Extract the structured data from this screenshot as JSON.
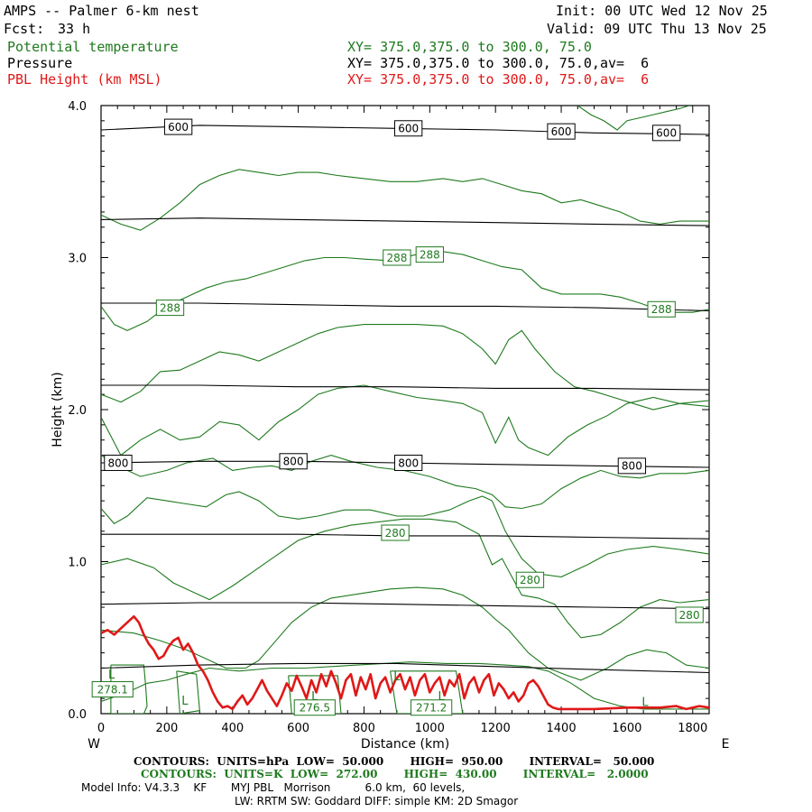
{
  "header": {
    "title": "AMPS -- Palmer 6-km nest",
    "fcst_label": "Fcst:",
    "fcst_value": "33 h",
    "init": "Init: 00 UTC Wed 12 Nov 25",
    "valid": "Valid: 09 UTC Thu 13 Nov 25",
    "legend": [
      {
        "name": "Potential temperature",
        "xy": "XY= 375.0,375.0 to 300.0, 75.0",
        "color": "#1e7a1e"
      },
      {
        "name": "Pressure",
        "xy": "XY= 375.0,375.0 to 300.0, 75.0,av=  6",
        "color": "#000000"
      },
      {
        "name": "PBL Height (km MSL)",
        "xy": "XY= 375.0,375.0 to 300.0, 75.0,av=  6",
        "color": "#e01818"
      }
    ]
  },
  "footer": {
    "pressure_contours": "CONTOURS:  UNITS=hPa  LOW=  50.000       HIGH=  950.00       INTERVAL=   50.000",
    "theta_contours": "CONTOURS:  UNITS=K  LOW=  272.00       HIGH=  430.00       INTERVAL=   2.0000",
    "model_info": "Model Info: V4.3.3    KF       MYJ PBL   Morrison          6.0 km,  60 levels,",
    "model_info_2": "LW: RRTM SW: Goddard DIFF: simple KM: 2D Smagor"
  },
  "chart_data": {
    "type": "line",
    "title": "AMPS -- Palmer 6-km nest",
    "xlabel": "Distance (km)",
    "ylabel": "Height (km)",
    "xlim": [
      0,
      1850
    ],
    "ylim": [
      0,
      4
    ],
    "x_ticks": [
      0,
      200,
      400,
      600,
      800,
      1000,
      1200,
      1400,
      1600,
      1800
    ],
    "x_tick_labels": [
      "0",
      "200",
      "400",
      "600",
      "800",
      "1000",
      "1200",
      "1400",
      "1600",
      "1800"
    ],
    "y_ticks": [
      0,
      1,
      2,
      3,
      4
    ],
    "y_tick_labels": [
      "0.0",
      "1.0",
      "2.0",
      "3.0",
      "4.0"
    ],
    "left_end_label": "W",
    "right_end_label": "E",
    "pressure_lines": [
      {
        "name": "600 hPa",
        "x": [
          0,
          300,
          600,
          900,
          1200,
          1500,
          1850
        ],
        "y": [
          3.84,
          3.87,
          3.86,
          3.85,
          3.84,
          3.82,
          3.81
        ]
      },
      {
        "name": "650 hPa",
        "x": [
          0,
          300,
          600,
          900,
          1200,
          1500,
          1850
        ],
        "y": [
          3.25,
          3.26,
          3.25,
          3.24,
          3.23,
          3.22,
          3.21
        ]
      },
      {
        "name": "700 hPa",
        "x": [
          0,
          300,
          600,
          900,
          1200,
          1500,
          1850
        ],
        "y": [
          2.7,
          2.7,
          2.69,
          2.68,
          2.68,
          2.67,
          2.65
        ]
      },
      {
        "name": "750 hPa",
        "x": [
          0,
          300,
          600,
          900,
          1200,
          1500,
          1850
        ],
        "y": [
          2.16,
          2.16,
          2.15,
          2.15,
          2.14,
          2.14,
          2.13
        ]
      },
      {
        "name": "800 hPa",
        "x": [
          0,
          300,
          600,
          900,
          1200,
          1500,
          1850
        ],
        "y": [
          1.65,
          1.66,
          1.66,
          1.65,
          1.64,
          1.63,
          1.62
        ]
      },
      {
        "name": "850 hPa",
        "x": [
          0,
          300,
          600,
          900,
          1200,
          1500,
          1850
        ],
        "y": [
          1.18,
          1.18,
          1.18,
          1.17,
          1.17,
          1.16,
          1.15
        ]
      },
      {
        "name": "900 hPa",
        "x": [
          0,
          300,
          600,
          900,
          1200,
          1500,
          1850
        ],
        "y": [
          0.72,
          0.73,
          0.73,
          0.72,
          0.71,
          0.7,
          0.69
        ]
      },
      {
        "name": "950 hPa",
        "x": [
          0,
          300,
          600,
          900,
          1200,
          1500,
          1850
        ],
        "y": [
          0.3,
          0.32,
          0.33,
          0.33,
          0.31,
          0.29,
          0.27
        ]
      }
    ],
    "pressure_labels": [
      {
        "text": "600",
        "x": 235,
        "y": 3.86
      },
      {
        "text": "600",
        "x": 935,
        "y": 3.85
      },
      {
        "text": "600",
        "x": 1400,
        "y": 3.83
      },
      {
        "text": "600",
        "x": 1720,
        "y": 3.82
      },
      {
        "text": "800",
        "x": 52,
        "y": 1.65
      },
      {
        "text": "800",
        "x": 585,
        "y": 1.66
      },
      {
        "text": "800",
        "x": 935,
        "y": 1.65
      },
      {
        "text": "800",
        "x": 1615,
        "y": 1.63
      }
    ],
    "theta_lines": [
      {
        "name": "theta-1",
        "x": [
          0,
          80,
          140,
          200,
          260,
          330,
          420,
          520,
          620,
          700,
          780,
          860,
          940,
          1050,
          1150,
          1230,
          1300,
          1360,
          1430,
          1500,
          1580,
          1650,
          1720,
          1800,
          1850
        ],
        "y": [
          0.08,
          0.14,
          0.2,
          0.22,
          0.26,
          0.3,
          0.28,
          0.3,
          0.3,
          0.31,
          0.32,
          0.33,
          0.34,
          0.33,
          0.33,
          0.32,
          0.31,
          0.28,
          0.2,
          0.1,
          0.05,
          0.03,
          0.03,
          0.03,
          0.03
        ]
      },
      {
        "name": "theta-2",
        "x": [
          0,
          100,
          180,
          260,
          320,
          380,
          440,
          480,
          520,
          580,
          640,
          700,
          760,
          820,
          880,
          960,
          1040,
          1100,
          1160,
          1200,
          1240,
          1300,
          1360,
          1420,
          1460,
          1540,
          1600,
          1660,
          1720,
          1780,
          1850
        ],
        "y": [
          0.55,
          0.53,
          0.48,
          0.42,
          0.36,
          0.3,
          0.3,
          0.35,
          0.45,
          0.6,
          0.7,
          0.76,
          0.78,
          0.8,
          0.82,
          0.83,
          0.82,
          0.78,
          0.7,
          0.62,
          0.55,
          0.4,
          0.3,
          0.25,
          0.22,
          0.3,
          0.38,
          0.42,
          0.4,
          0.32,
          0.3
        ]
      },
      {
        "name": "theta-3",
        "x": [
          0,
          80,
          160,
          220,
          280,
          330,
          400,
          460,
          520,
          600,
          680,
          760,
          840,
          920,
          1000,
          1080,
          1150,
          1190,
          1220,
          1250,
          1280,
          1330,
          1380,
          1420,
          1460,
          1520,
          1580,
          1640,
          1700,
          1760,
          1850
        ],
        "y": [
          0.98,
          1.02,
          0.96,
          0.86,
          0.8,
          0.75,
          0.84,
          0.93,
          1.02,
          1.14,
          1.2,
          1.24,
          1.26,
          1.28,
          1.28,
          1.26,
          1.18,
          0.98,
          1.02,
          0.9,
          0.78,
          0.76,
          0.72,
          0.6,
          0.5,
          0.52,
          0.6,
          0.7,
          0.75,
          0.73,
          0.75
        ]
      },
      {
        "name": "theta-4",
        "x": [
          0,
          40,
          80,
          140,
          200,
          260,
          320,
          380,
          420,
          480,
          540,
          600,
          660,
          740,
          820,
          900,
          980,
          1060,
          1120,
          1160,
          1190,
          1230,
          1280,
          1330,
          1400,
          1480,
          1540,
          1600,
          1680,
          1760,
          1850
        ],
        "y": [
          1.35,
          1.25,
          1.3,
          1.42,
          1.4,
          1.38,
          1.36,
          1.44,
          1.46,
          1.4,
          1.3,
          1.28,
          1.3,
          1.34,
          1.34,
          1.3,
          1.3,
          1.34,
          1.4,
          1.43,
          1.4,
          1.2,
          1.02,
          0.92,
          0.9,
          0.98,
          1.05,
          1.08,
          1.1,
          1.08,
          1.05
        ]
      },
      {
        "name": "theta-5",
        "x": [
          0,
          60,
          120,
          200,
          260,
          340,
          400,
          460,
          520,
          580,
          640,
          700,
          760,
          840,
          920,
          1000,
          1080,
          1140,
          1190,
          1230,
          1280,
          1340,
          1400,
          1460,
          1520,
          1580,
          1640,
          1700,
          1780,
          1850
        ],
        "y": [
          1.7,
          1.62,
          1.56,
          1.6,
          1.65,
          1.68,
          1.6,
          1.62,
          1.63,
          1.6,
          1.66,
          1.7,
          1.66,
          1.62,
          1.6,
          1.56,
          1.5,
          1.48,
          1.44,
          1.36,
          1.35,
          1.38,
          1.48,
          1.55,
          1.6,
          1.56,
          1.55,
          1.58,
          1.58,
          1.6
        ]
      },
      {
        "name": "theta-6",
        "x": [
          0,
          60,
          120,
          180,
          240,
          300,
          360,
          420,
          480,
          540,
          600,
          660,
          720,
          800,
          880,
          960,
          1040,
          1100,
          1160,
          1200,
          1240,
          1270,
          1300,
          1360,
          1420,
          1480,
          1540,
          1600,
          1680,
          1760,
          1850
        ],
        "y": [
          1.95,
          1.7,
          1.8,
          1.87,
          1.8,
          1.82,
          1.92,
          1.9,
          1.8,
          1.92,
          2.0,
          2.1,
          2.14,
          2.16,
          2.12,
          2.08,
          2.06,
          2.04,
          1.98,
          1.78,
          1.95,
          1.8,
          1.75,
          1.7,
          1.82,
          1.9,
          1.96,
          2.04,
          2.08,
          2.04,
          2.02
        ]
      },
      {
        "name": "theta-7",
        "x": [
          0,
          60,
          120,
          180,
          240,
          300,
          360,
          420,
          480,
          540,
          600,
          660,
          720,
          800,
          880,
          960,
          1040,
          1100,
          1160,
          1200,
          1240,
          1280,
          1320,
          1380,
          1440,
          1500,
          1560,
          1620,
          1680,
          1760,
          1850
        ],
        "y": [
          2.1,
          2.05,
          2.12,
          2.25,
          2.26,
          2.32,
          2.38,
          2.36,
          2.32,
          2.38,
          2.44,
          2.5,
          2.54,
          2.56,
          2.56,
          2.56,
          2.55,
          2.5,
          2.4,
          2.3,
          2.46,
          2.52,
          2.4,
          2.25,
          2.15,
          2.12,
          2.08,
          2.04,
          2.0,
          2.04,
          2.06
        ]
      },
      {
        "name": "theta-8",
        "x": [
          0,
          40,
          80,
          140,
          200,
          260,
          320,
          380,
          440,
          500,
          560,
          620,
          680,
          740,
          800,
          880,
          960,
          1040,
          1100,
          1160,
          1220,
          1280,
          1340,
          1400,
          1460,
          1520,
          1580,
          1640,
          1720,
          1800,
          1850
        ],
        "y": [
          2.68,
          2.56,
          2.52,
          2.58,
          2.68,
          2.74,
          2.8,
          2.84,
          2.86,
          2.9,
          2.94,
          2.98,
          3.0,
          3.0,
          2.99,
          2.98,
          3.02,
          3.04,
          3.02,
          2.98,
          2.94,
          2.92,
          2.8,
          2.76,
          2.76,
          2.76,
          2.74,
          2.7,
          2.64,
          2.64,
          2.66
        ]
      },
      {
        "name": "theta-9",
        "x": [
          0,
          60,
          120,
          180,
          240,
          300,
          360,
          420,
          480,
          540,
          600,
          660,
          720,
          800,
          880,
          960,
          1040,
          1100,
          1160,
          1220,
          1280,
          1340,
          1400,
          1460,
          1520,
          1580,
          1640,
          1700,
          1760,
          1850
        ],
        "y": [
          3.28,
          3.22,
          3.18,
          3.26,
          3.36,
          3.48,
          3.54,
          3.58,
          3.56,
          3.54,
          3.56,
          3.56,
          3.54,
          3.52,
          3.5,
          3.5,
          3.52,
          3.5,
          3.52,
          3.48,
          3.44,
          3.42,
          3.36,
          3.38,
          3.34,
          3.3,
          3.24,
          3.22,
          3.24,
          3.24
        ]
      },
      {
        "name": "theta-10",
        "x": [
          1450,
          1490,
          1530,
          1570,
          1600,
          1640,
          1680,
          1720,
          1760,
          1790
        ],
        "y": [
          4.0,
          3.94,
          3.9,
          3.84,
          3.9,
          3.92,
          3.94,
          3.96,
          3.98,
          4.0
        ]
      },
      {
        "name": "theta-low-1",
        "x": [
          30,
          130,
          135,
          140,
          130,
          30,
          30
        ],
        "y": [
          0.32,
          0.32,
          0.2,
          0.05,
          0.0,
          0.0,
          0.32
        ]
      },
      {
        "name": "theta-low-2",
        "x": [
          230,
          290,
          300,
          240,
          230
        ],
        "y": [
          0.28,
          0.26,
          0.02,
          0.0,
          0.28
        ]
      },
      {
        "name": "theta-low-3",
        "x": [
          570,
          720,
          730,
          580,
          570
        ],
        "y": [
          0.25,
          0.25,
          0.0,
          0.0,
          0.25
        ]
      },
      {
        "name": "theta-low-4",
        "x": [
          880,
          1080,
          1100,
          900,
          880
        ],
        "y": [
          0.28,
          0.28,
          0.0,
          0.0,
          0.28
        ]
      }
    ],
    "theta_labels": [
      {
        "text": "288",
        "x": 900,
        "y": 3.0
      },
      {
        "text": "288",
        "x": 1000,
        "y": 3.02
      },
      {
        "text": "288",
        "x": 210,
        "y": 2.67
      },
      {
        "text": "288",
        "x": 1705,
        "y": 2.66
      },
      {
        "text": "280",
        "x": 895,
        "y": 1.19
      },
      {
        "text": "280",
        "x": 1305,
        "y": 0.88
      },
      {
        "text": "280",
        "x": 1790,
        "y": 0.65
      },
      {
        "text": "278.1",
        "x": 35,
        "y": 0.16
      },
      {
        "text": "276.5",
        "x": 650,
        "y": 0.04
      },
      {
        "text": "271.2",
        "x": 1005,
        "y": 0.04
      }
    ],
    "low_markers": [
      {
        "text": "L",
        "x": 32,
        "y": 0.26
      },
      {
        "text": "L",
        "x": 255,
        "y": 0.09
      },
      {
        "text": "L",
        "x": 650,
        "y": 0.12
      },
      {
        "text": "L",
        "x": 900,
        "y": 0.25
      },
      {
        "text": "L",
        "x": 1035,
        "y": 0.12
      },
      {
        "text": "L",
        "x": 1655,
        "y": 0.08
      }
    ],
    "pbl_height": {
      "name": "PBL Height (km MSL)",
      "x": [
        0,
        20,
        40,
        60,
        80,
        100,
        115,
        130,
        145,
        160,
        175,
        190,
        205,
        220,
        235,
        250,
        265,
        280,
        295,
        310,
        325,
        340,
        355,
        370,
        385,
        400,
        415,
        430,
        445,
        460,
        475,
        490,
        505,
        520,
        535,
        550,
        565,
        580,
        595,
        610,
        625,
        640,
        655,
        670,
        685,
        700,
        715,
        730,
        745,
        760,
        775,
        790,
        805,
        820,
        835,
        850,
        865,
        880,
        895,
        910,
        925,
        940,
        955,
        970,
        985,
        1000,
        1015,
        1030,
        1045,
        1060,
        1075,
        1090,
        1105,
        1120,
        1135,
        1150,
        1165,
        1180,
        1195,
        1210,
        1225,
        1240,
        1255,
        1270,
        1285,
        1300,
        1315,
        1330,
        1345,
        1360,
        1375,
        1390,
        1420,
        1500,
        1600,
        1700,
        1750,
        1780,
        1800,
        1820,
        1850
      ],
      "y": [
        0.53,
        0.55,
        0.52,
        0.56,
        0.6,
        0.64,
        0.6,
        0.52,
        0.46,
        0.42,
        0.36,
        0.38,
        0.44,
        0.48,
        0.5,
        0.42,
        0.46,
        0.4,
        0.32,
        0.28,
        0.22,
        0.14,
        0.08,
        0.04,
        0.05,
        0.03,
        0.08,
        0.12,
        0.06,
        0.1,
        0.16,
        0.22,
        0.15,
        0.1,
        0.05,
        0.12,
        0.2,
        0.15,
        0.25,
        0.18,
        0.1,
        0.22,
        0.14,
        0.26,
        0.18,
        0.28,
        0.2,
        0.1,
        0.22,
        0.26,
        0.12,
        0.24,
        0.16,
        0.26,
        0.1,
        0.2,
        0.24,
        0.14,
        0.22,
        0.26,
        0.16,
        0.24,
        0.12,
        0.22,
        0.26,
        0.14,
        0.2,
        0.24,
        0.12,
        0.22,
        0.18,
        0.26,
        0.1,
        0.2,
        0.24,
        0.14,
        0.22,
        0.26,
        0.12,
        0.2,
        0.16,
        0.1,
        0.14,
        0.08,
        0.12,
        0.2,
        0.22,
        0.18,
        0.12,
        0.06,
        0.04,
        0.03,
        0.03,
        0.03,
        0.04,
        0.04,
        0.05,
        0.03,
        0.04,
        0.05,
        0.04
      ]
    }
  }
}
